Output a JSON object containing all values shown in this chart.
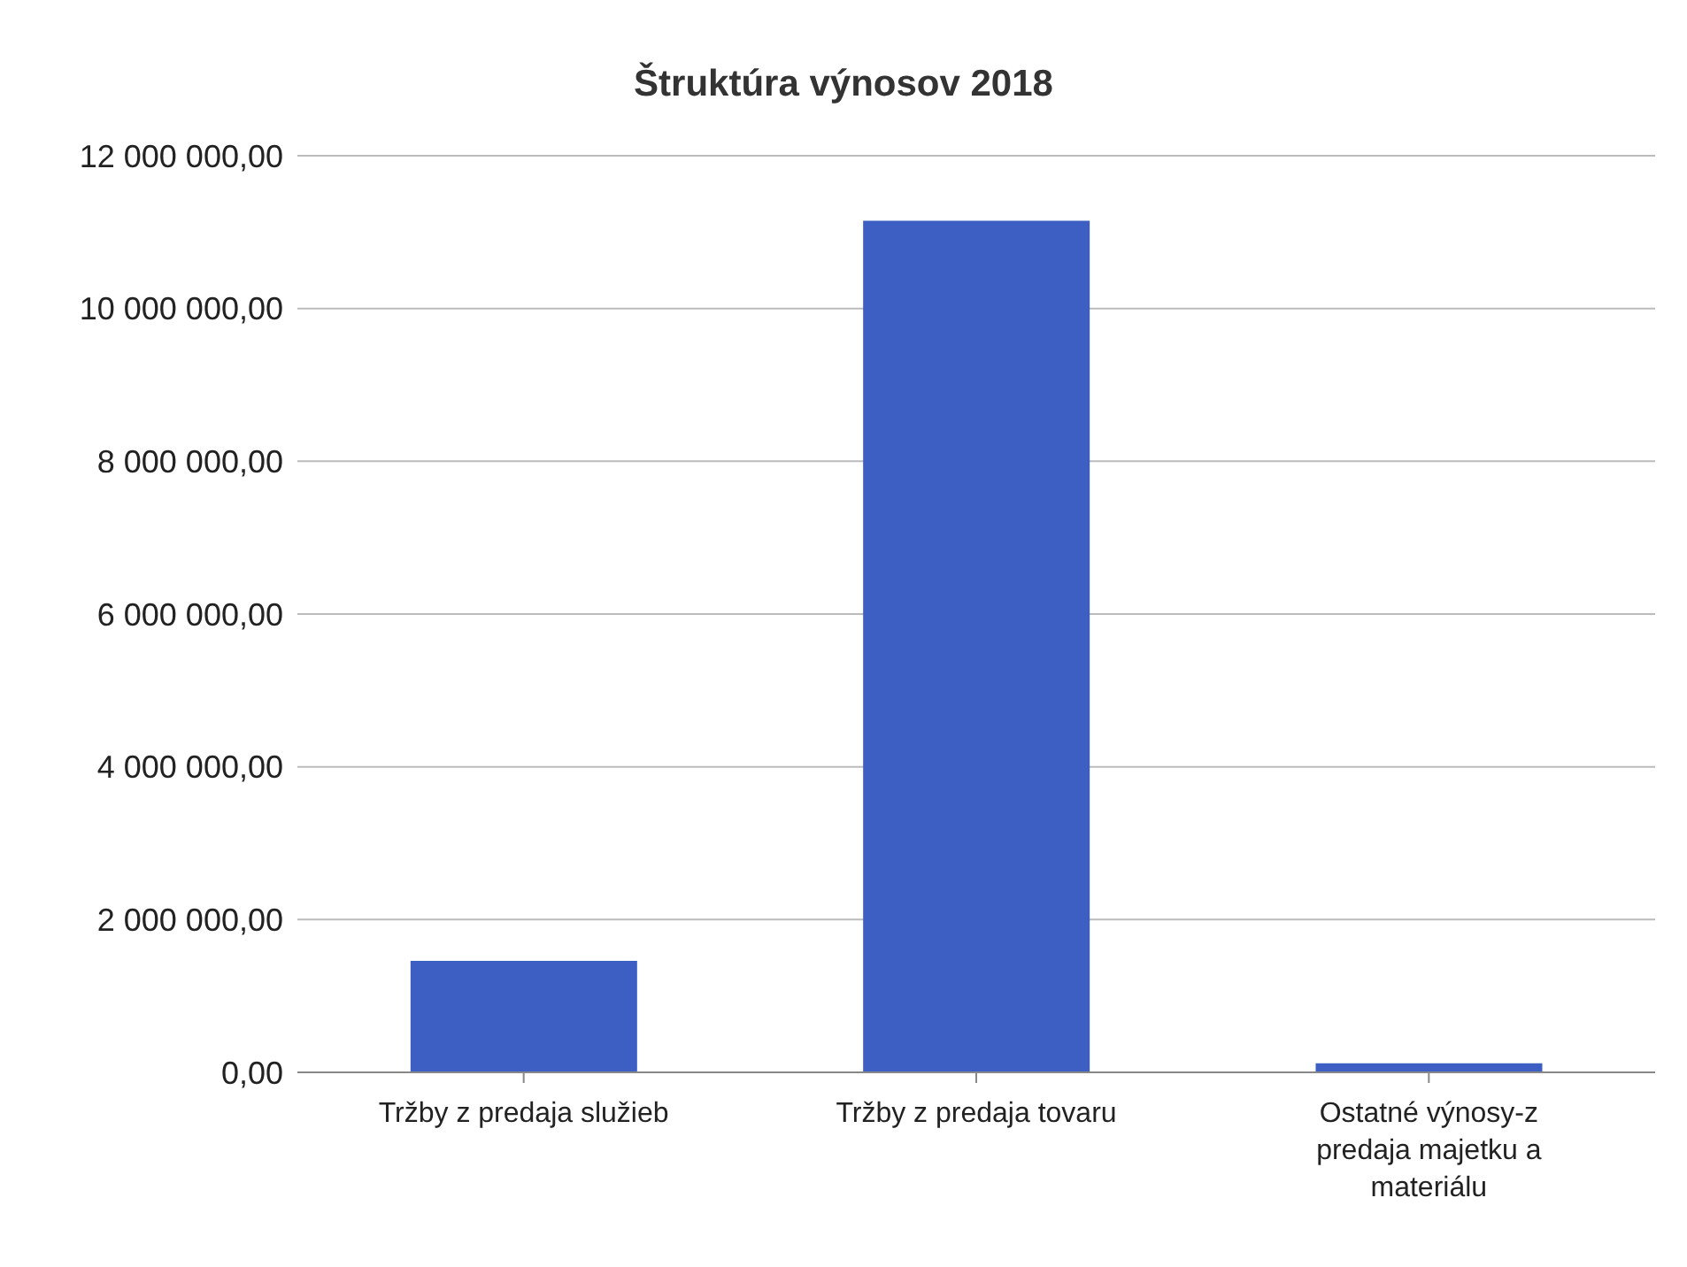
{
  "chart_data": {
    "type": "bar",
    "title": "Štruktúra výnosov 2018",
    "categories": [
      "Tržby z predaja služieb",
      "Tržby z predaja tovaru",
      "Ostatné výnosy-z predaja majetku a materiálu"
    ],
    "values": [
      1460000,
      11150000,
      120000
    ],
    "color": "#3d5fc4",
    "ylim": [
      0,
      12000000
    ],
    "yticks": [
      {
        "value": 0,
        "label": "0,00"
      },
      {
        "value": 2000000,
        "label": "2 000 000,00"
      },
      {
        "value": 4000000,
        "label": "4 000 000,00"
      },
      {
        "value": 6000000,
        "label": "6 000 000,00"
      },
      {
        "value": 8000000,
        "label": "8 000 000,00"
      },
      {
        "value": 10000000,
        "label": "10 000 000,00"
      },
      {
        "value": 12000000,
        "label": "12 000 000,00"
      }
    ],
    "grid": "y"
  }
}
